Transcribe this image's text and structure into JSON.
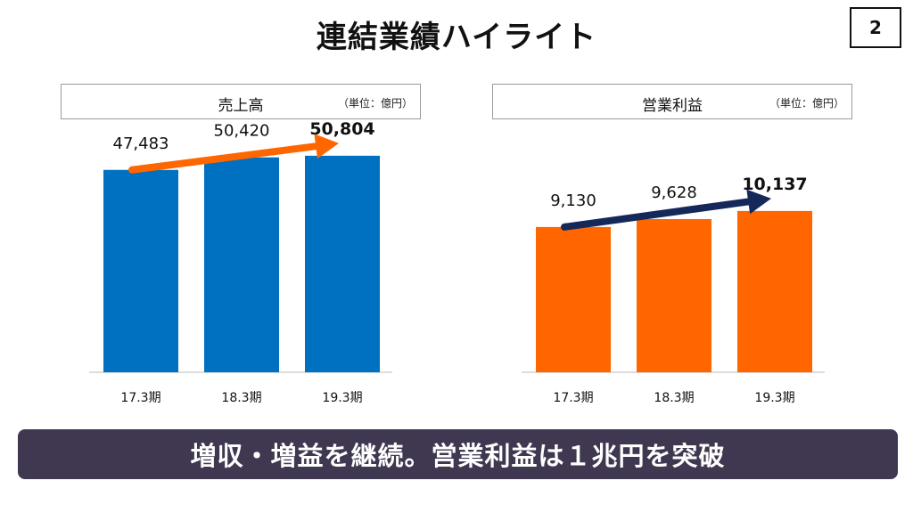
{
  "title": "連結業績ハイライト",
  "page_number": "2",
  "banner": "増収・増益を継続。営業利益は１兆円を突破",
  "colors": {
    "sales": "#0070c0",
    "profit": "#ff6600",
    "sales_arrow": "#ff6600",
    "profit_arrow": "#14285a"
  },
  "chart_data": [
    {
      "type": "bar",
      "title": "売上高",
      "unit": "（単位：億円）",
      "categories": [
        "17.3期",
        "18.3期",
        "19.3期"
      ],
      "values": [
        47483,
        50420,
        50804
      ],
      "labels": [
        "47,483",
        "50,420",
        "50,804"
      ],
      "ylim": [
        0,
        56000
      ]
    },
    {
      "type": "bar",
      "title": "営業利益",
      "unit": "（単位：億円）",
      "categories": [
        "17.3期",
        "18.3期",
        "19.3期"
      ],
      "values": [
        9130,
        9628,
        10137
      ],
      "labels": [
        "9,130",
        "9,628",
        "10,137"
      ],
      "ylim": [
        0,
        15000
      ]
    }
  ]
}
